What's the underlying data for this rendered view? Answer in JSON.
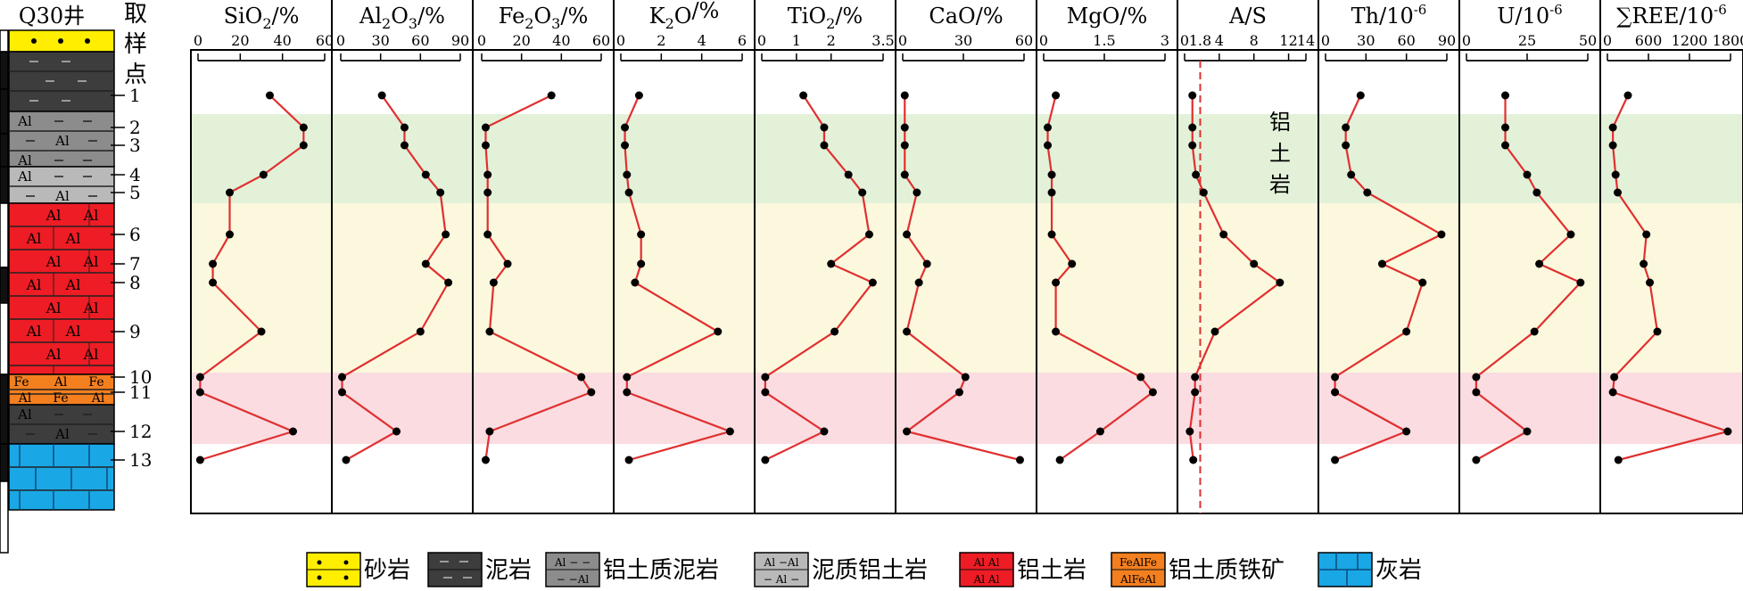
{
  "well_name": "Q30井",
  "sample_header": [
    "取",
    "样",
    "点"
  ],
  "samples": [
    "1",
    "2",
    "3",
    "4",
    "5",
    "6",
    "7",
    "8",
    "9",
    "10",
    "11",
    "12",
    "13"
  ],
  "colors": {
    "line": "#e03030",
    "point": "#000000",
    "green_band": "#e3f1d9",
    "yellow_band": "#fcf8dd",
    "pink_band": "#fadce1",
    "ref_line": "#e03030",
    "sandstone": "#ffee00",
    "mudstone": "#3d3d3d",
    "bauxitic_mudstone": "#8c8c8c",
    "muddy_bauxite": "#b9b9b9",
    "bauxite": "#ee1c24",
    "bauxitic_iron_ore": "#f47f1f",
    "limestone": "#1aa7e6"
  },
  "column": {
    "layers": [
      {
        "rock": "sandstone",
        "pattern": "dots",
        "label": ""
      },
      {
        "rock": "mudstone",
        "pattern": "dashes",
        "label": ""
      },
      {
        "rock": "bauxitic_mudstone",
        "pattern": "al-dash",
        "label": ""
      },
      {
        "rock": "muddy_bauxite",
        "pattern": "al-dash",
        "label": ""
      },
      {
        "rock": "bauxite",
        "pattern": "al",
        "label": ""
      },
      {
        "rock": "bauxitic_iron_ore",
        "pattern": "fe-al",
        "label": ""
      },
      {
        "rock": "mudstone",
        "pattern": "al-dash",
        "label": ""
      },
      {
        "rock": "limestone",
        "pattern": "bricks",
        "label": ""
      }
    ],
    "al_text": "Al",
    "fe_text": "Fe"
  },
  "band_label": [
    "铝",
    "土",
    "岩"
  ],
  "legend": [
    {
      "key": "sandstone",
      "label": "砂岩"
    },
    {
      "key": "mudstone",
      "label": "泥岩"
    },
    {
      "key": "bauxitic_mudstone",
      "label": "铝土质泥岩",
      "swatch_text": [
        "Al − −",
        "− −Al"
      ]
    },
    {
      "key": "muddy_bauxite",
      "label": "泥质铝土岩",
      "swatch_text": [
        "Al −Al",
        "− Al −"
      ]
    },
    {
      "key": "bauxite",
      "label": "铝土岩",
      "swatch_text": [
        "Al  Al",
        "Al  Al"
      ]
    },
    {
      "key": "bauxitic_iron_ore",
      "label": "铝土质铁矿",
      "swatch_text": [
        "FeAlFe",
        "AlFeAl"
      ]
    },
    {
      "key": "limestone",
      "label": "灰岩"
    }
  ],
  "chart_data": {
    "type": "line",
    "orientation": "vertical-profile",
    "y_axis": "sample",
    "grid": false,
    "panels": [
      {
        "title_main": "SiO",
        "title_sub": "2",
        "title_suffix": "/%",
        "ticks": [
          "0",
          "20",
          "40",
          "60"
        ],
        "xlim": [
          0,
          60
        ],
        "values": [
          34,
          50,
          50,
          31,
          15,
          15,
          7,
          7,
          30,
          1,
          1,
          45,
          1
        ]
      },
      {
        "title_main": "Al",
        "title_sub": "2",
        "title_mid": "O",
        "title_sub2": "3",
        "title_suffix": "/%",
        "ticks": [
          "0",
          "30",
          "60",
          "90"
        ],
        "xlim": [
          0,
          90
        ],
        "values": [
          31,
          48,
          48,
          64,
          75,
          79,
          64,
          81,
          60,
          1,
          1,
          42,
          4
        ]
      },
      {
        "title_main": "Fe",
        "title_sub": "2",
        "title_mid": "O",
        "title_sub2": "3",
        "title_suffix": "/%",
        "ticks": [
          "0",
          "20",
          "40",
          "60"
        ],
        "xlim": [
          0,
          60
        ],
        "values": [
          35,
          2,
          2,
          3,
          3,
          3,
          13,
          6,
          4,
          50,
          55,
          4,
          2
        ]
      },
      {
        "title_main": "K",
        "title_sub": "2",
        "title_mid": "O",
        "title_suffix": "/%",
        "ticks": [
          "0",
          "2",
          "4",
          "6"
        ],
        "xlim": [
          0,
          6
        ],
        "values": [
          0.9,
          0.2,
          0.2,
          0.3,
          0.4,
          1.0,
          1.0,
          0.7,
          4.8,
          0.3,
          0.3,
          5.4,
          0.4
        ]
      },
      {
        "title_main": "TiO",
        "title_sub": "2",
        "title_suffix": "/%",
        "ticks": [
          "0",
          "1",
          "2",
          "3.5"
        ],
        "xlim": [
          0,
          3.5
        ],
        "values": [
          1.2,
          1.8,
          1.8,
          2.5,
          2.9,
          3.1,
          2.0,
          3.2,
          2.1,
          0.1,
          0.1,
          1.8,
          0.1
        ]
      },
      {
        "title_main": "CaO",
        "title_suffix": "/%",
        "ticks": [
          "0",
          "30",
          "60"
        ],
        "xlim": [
          0,
          60
        ],
        "values": [
          1,
          1,
          1,
          1,
          7,
          2,
          12,
          8,
          2,
          31,
          28,
          2,
          58
        ]
      },
      {
        "title_main": "MgO",
        "title_suffix": "/%",
        "ticks": [
          "0",
          "1.5",
          "3"
        ],
        "xlim": [
          0,
          3
        ],
        "values": [
          0.3,
          0.1,
          0.1,
          0.2,
          0.2,
          0.2,
          0.7,
          0.3,
          0.3,
          2.4,
          2.7,
          1.4,
          0.4
        ]
      },
      {
        "title_main": "A/S",
        "ticks": [
          "0",
          "1.8",
          "4",
          "8",
          "12",
          "14"
        ],
        "tick_values": [
          0,
          1.8,
          4,
          8,
          12,
          14
        ],
        "xlim": [
          0,
          14
        ],
        "ref_line": 1.8,
        "ref_label": "1.8",
        "values": [
          0.9,
          0.9,
          0.9,
          1.3,
          2.2,
          4.5,
          8,
          11,
          3.5,
          1.2,
          1.2,
          0.6,
          1.0
        ]
      },
      {
        "title_main": "Th",
        "title_sup": "/10",
        "title_exp": "-6",
        "ticks": [
          "0",
          "30",
          "60",
          "90"
        ],
        "xlim": [
          0,
          90
        ],
        "values": [
          26,
          15,
          15,
          19,
          31,
          86,
          42,
          72,
          60,
          7,
          7,
          60,
          7
        ]
      },
      {
        "title_main": "U",
        "title_sup": "/10",
        "title_exp": "-6",
        "ticks": [
          "0",
          "25",
          "50"
        ],
        "xlim": [
          0,
          50
        ],
        "values": [
          16,
          16,
          16,
          25,
          29,
          43,
          30,
          47,
          28,
          4,
          4,
          25,
          4
        ]
      },
      {
        "title_main": "∑REE",
        "title_sup": "/10",
        "title_exp": "-6",
        "ticks": [
          "0",
          "600",
          "1200",
          "1800"
        ],
        "xlim": [
          0,
          1800
        ],
        "values": [
          300,
          80,
          80,
          120,
          150,
          570,
          530,
          620,
          730,
          100,
          80,
          1760,
          160
        ]
      }
    ]
  }
}
